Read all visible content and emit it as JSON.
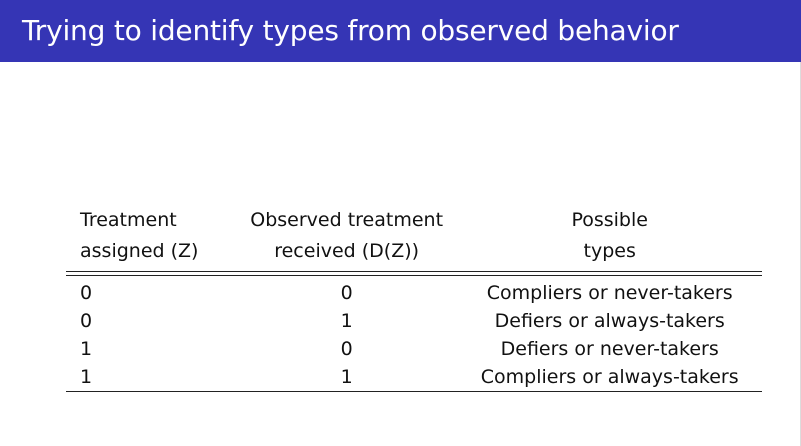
{
  "slide": {
    "title": "Trying to identify types from observed behavior",
    "title_bar_color": "#3535b5",
    "background_color": "#ffffff"
  },
  "table": {
    "columns": [
      {
        "line1": "Treatment",
        "line2": "assigned (Z)"
      },
      {
        "line1": "Observed treatment",
        "line2": "received (D(Z))"
      },
      {
        "line1": "Possible",
        "line2": "types"
      }
    ],
    "rows": [
      {
        "z": "0",
        "d": "0",
        "types": "Compliers or never-takers"
      },
      {
        "z": "0",
        "d": "1",
        "types": "Defiers or always-takers"
      },
      {
        "z": "1",
        "d": "0",
        "types": "Defiers or never-takers"
      },
      {
        "z": "1",
        "d": "1",
        "types": "Compliers or always-takers"
      }
    ]
  }
}
